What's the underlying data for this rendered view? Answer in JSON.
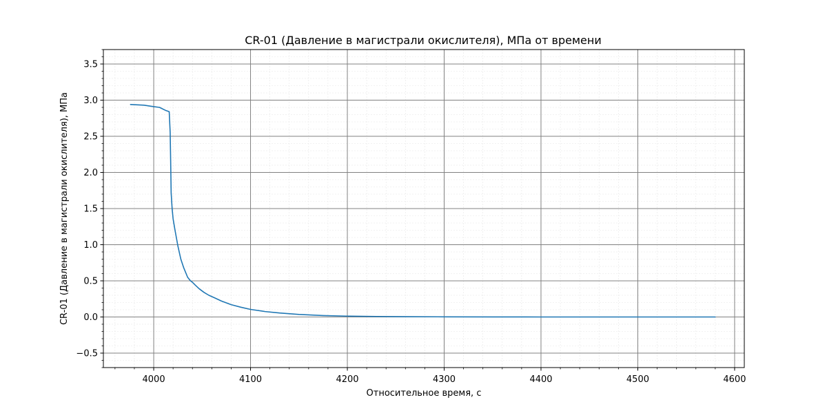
{
  "chart_data": {
    "type": "line",
    "title": "CR-01 (Давление в магистрали окислителя), МПа от времени",
    "xlabel": "Относительное время, с",
    "ylabel": "CR-01 (Давление в магистрали окислителя), МПа",
    "xlim": [
      3948,
      4610
    ],
    "ylim": [
      -0.7,
      3.7
    ],
    "x_ticks": [
      4000,
      4100,
      4200,
      4300,
      4400,
      4500,
      4600
    ],
    "y_ticks": [
      -0.5,
      0.0,
      0.5,
      1.0,
      1.5,
      2.0,
      2.5,
      3.0,
      3.5
    ],
    "x_tick_labels": [
      "4000",
      "4100",
      "4200",
      "4300",
      "4400",
      "4500",
      "4600"
    ],
    "y_tick_labels": [
      "−0.5",
      "0.0",
      "0.5",
      "1.0",
      "1.5",
      "2.0",
      "2.5",
      "3.0",
      "3.5"
    ],
    "x_minor_step": 20,
    "y_minor_step": 0.1,
    "grid": true,
    "line_color": "#1f77b4",
    "major_grid_color": "#808080",
    "minor_grid_color": "#e6e6e6",
    "series": [
      {
        "x": [
          3976,
          3990,
          4000,
          4006,
          4012,
          4016,
          4017,
          4017.5,
          4018,
          4019,
          4020,
          4022,
          4025,
          4028,
          4031,
          4035,
          4038,
          4040,
          4043,
          4047,
          4052,
          4057,
          4062,
          4070,
          4080,
          4090,
          4100,
          4115,
          4130,
          4150,
          4175,
          4200,
          4230,
          4260,
          4300,
          4350,
          4400,
          4450,
          4500,
          4550,
          4580
        ],
        "y": [
          2.94,
          2.93,
          2.91,
          2.9,
          2.86,
          2.84,
          2.55,
          2.15,
          1.72,
          1.5,
          1.36,
          1.2,
          0.98,
          0.8,
          0.68,
          0.55,
          0.5,
          0.48,
          0.44,
          0.39,
          0.34,
          0.3,
          0.27,
          0.22,
          0.17,
          0.135,
          0.105,
          0.075,
          0.055,
          0.035,
          0.02,
          0.012,
          0.007,
          0.004,
          0.002,
          0.001,
          0.0,
          0.0,
          0.0,
          0.0,
          0.0
        ]
      }
    ]
  }
}
